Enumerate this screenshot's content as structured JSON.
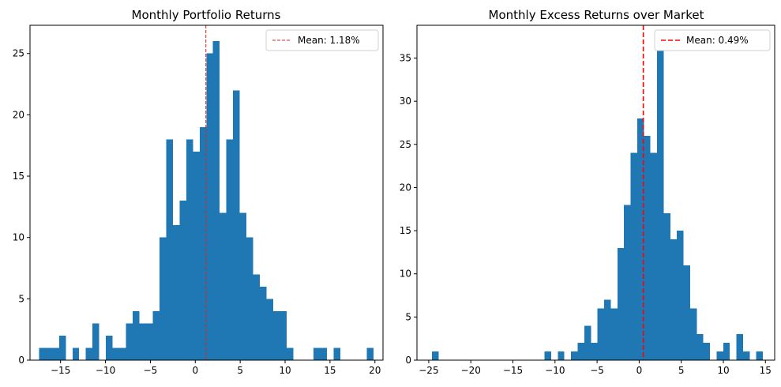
{
  "chart_data": [
    {
      "type": "bar",
      "title": "Monthly Portfolio Returns",
      "xlabel": "",
      "ylabel": "",
      "bin_start": -17.4,
      "bin_width": 0.7452,
      "counts": [
        1,
        1,
        1,
        2,
        0,
        1,
        0,
        1,
        3,
        0,
        2,
        1,
        1,
        3,
        4,
        3,
        3,
        4,
        10,
        18,
        11,
        13,
        18,
        17,
        19,
        25,
        26,
        12,
        18,
        22,
        12,
        10,
        7,
        6,
        5,
        4,
        4,
        1,
        0,
        0,
        0,
        1,
        1,
        0,
        1,
        0,
        0,
        0,
        0,
        1
      ],
      "xlim": [
        -18.4,
        20.9
      ],
      "ylim": [
        0,
        27.3
      ],
      "xticks": [
        -15,
        -10,
        -5,
        0,
        5,
        10,
        15,
        20
      ],
      "yticks": [
        0,
        5,
        10,
        15,
        20,
        25
      ],
      "bar_color": "#1f77b4",
      "mean_line": {
        "value": 1.18,
        "color": "#d62728",
        "label": "Mean: 1.18%"
      },
      "legend_position": "top-right",
      "grid": false
    },
    {
      "type": "bar",
      "title": "Monthly Excess Returns over Market",
      "xlabel": "",
      "ylabel": "",
      "bin_start": -24.6,
      "bin_width": 0.786,
      "counts": [
        1,
        0,
        0,
        0,
        0,
        0,
        0,
        0,
        0,
        0,
        0,
        0,
        0,
        0,
        0,
        0,
        0,
        1,
        0,
        1,
        0,
        1,
        2,
        4,
        2,
        6,
        7,
        6,
        13,
        18,
        24,
        28,
        26,
        24,
        37,
        17,
        14,
        15,
        11,
        6,
        3,
        2,
        0,
        1,
        2,
        0,
        3,
        1,
        0,
        1
      ],
      "xlim": [
        -26.4,
        16.1
      ],
      "ylim": [
        0,
        38.8
      ],
      "xticks": [
        -25,
        -20,
        -15,
        -10,
        -5,
        0,
        5,
        10,
        15
      ],
      "yticks": [
        0,
        5,
        10,
        15,
        20,
        25,
        30,
        35
      ],
      "bar_color": "#1f77b4",
      "mean_line": {
        "value": 0.49,
        "color": "#ff0000",
        "label": "Mean: 0.49%"
      },
      "legend_position": "top-right",
      "grid": false
    }
  ]
}
